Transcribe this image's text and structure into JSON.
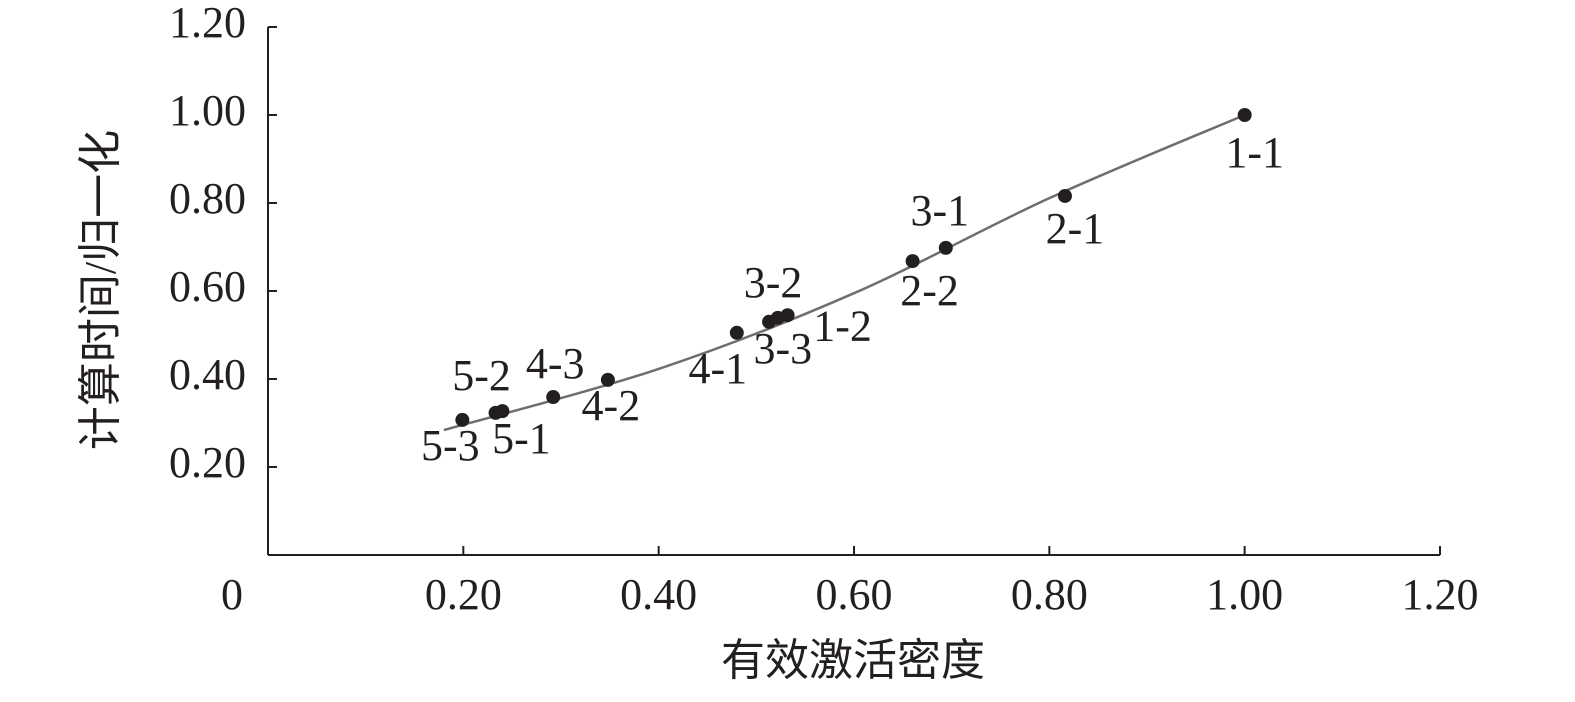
{
  "chart_data": {
    "type": "scatter",
    "x_label": "有效激活密度",
    "y_label": "计算时间/归一化",
    "xlim": [
      0,
      1.2
    ],
    "ylim": [
      0,
      1.2
    ],
    "xticks": [
      0,
      {
        "value": 0.2,
        "label": "0.20"
      },
      {
        "value": 0.4,
        "label": "0.40"
      },
      {
        "value": 0.6,
        "label": "0.60"
      },
      {
        "value": 0.8,
        "label": "0.80"
      },
      {
        "value": 1.0,
        "label": "1.00"
      },
      {
        "value": 1.2,
        "label": "1.20"
      }
    ],
    "yticks": [
      {
        "value": 0.2,
        "label": "0.20"
      },
      {
        "value": 0.4,
        "label": "0.40"
      },
      {
        "value": 0.6,
        "label": "0.60"
      },
      {
        "value": 0.8,
        "label": "0.80"
      },
      {
        "value": 1.0,
        "label": "1.00"
      },
      {
        "value": 1.2,
        "label": "1.20"
      }
    ],
    "points": {
      "labels": [
        "1-1",
        "2-1",
        "3-1",
        "2-2",
        "3-2",
        "3-3",
        "1-2",
        "4-1",
        "4-2",
        "4-3",
        "5-1",
        "5-2",
        "5-3"
      ],
      "x": [
        1.0,
        0.816,
        0.694,
        0.66,
        0.513,
        0.522,
        0.532,
        0.48,
        0.348,
        0.292,
        0.24,
        0.233,
        0.199
      ],
      "values": [
        1.0,
        0.816,
        0.698,
        0.668,
        0.53,
        0.539,
        0.545,
        0.505,
        0.398,
        0.359,
        0.327,
        0.323,
        0.307
      ],
      "color": "#231f20"
    },
    "trendline": {
      "x": [
        0.18,
        0.4,
        0.6,
        0.8,
        1.0
      ],
      "values": [
        0.284,
        0.423,
        0.595,
        0.811,
        1.0
      ],
      "color": "#6d6e71"
    }
  }
}
